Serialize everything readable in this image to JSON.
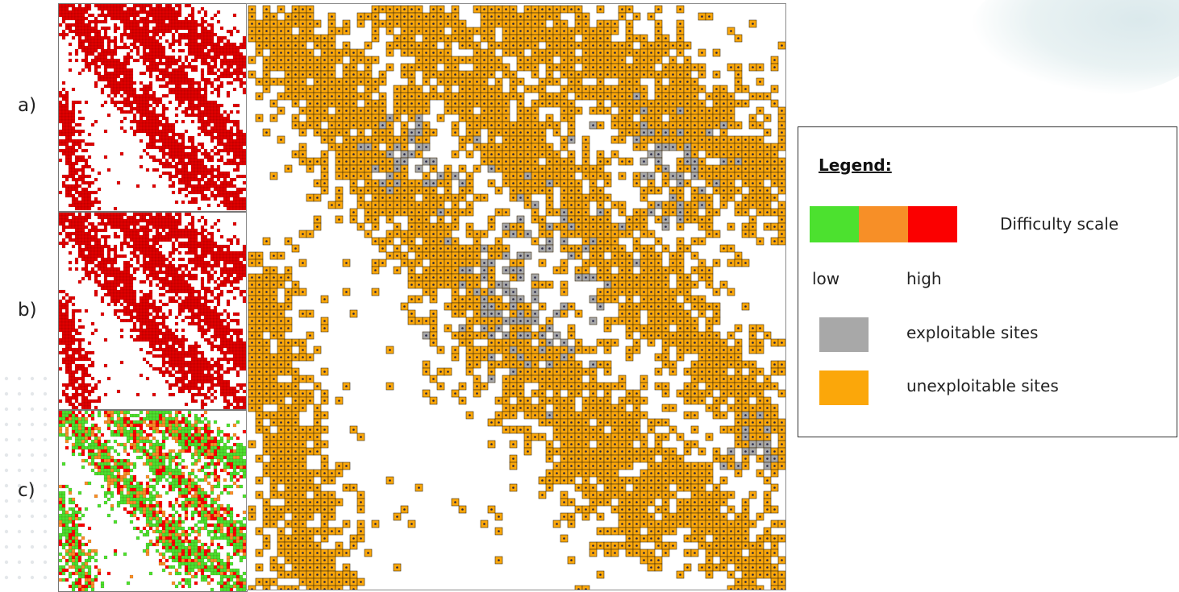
{
  "row_labels": [
    "a)",
    "b)",
    "c)"
  ],
  "legend": {
    "title": "Legend:",
    "difficulty_label": "Difficulty scale",
    "scale_low": "low",
    "scale_high": "high",
    "scale_colors": [
      "#4ce12f",
      "#f78f27",
      "#fb0000"
    ],
    "exploitable_label": "exploitable sites",
    "exploitable_color": "#a8a8a8",
    "unexploitable_label": "unexploitable sites",
    "unexploitable_color": "#fba70a"
  },
  "colors": {
    "site_outline": "#3a2a10",
    "site_dot": "#222244",
    "red_cell": "#e00000",
    "green_cell": "#38e22a"
  }
}
